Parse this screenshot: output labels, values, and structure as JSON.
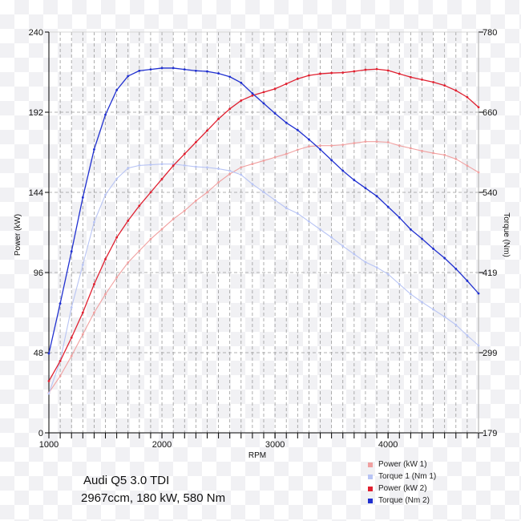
{
  "chart_data": {
    "type": "line",
    "title": "Audi Q5 3.0 TDI",
    "subtitle": "2967ccm, 180 kW, 580 Nm",
    "xlabel": "RPM",
    "ylabel": "Power (kW)",
    "y2label": "Torque (Nm)",
    "xlim": [
      1000,
      4800
    ],
    "ylim": [
      0,
      240
    ],
    "y2lim": [
      179,
      780
    ],
    "x_ticks": [
      "1000",
      "2000",
      "3000",
      "4000"
    ],
    "y_ticks": [
      "0",
      "48",
      "96",
      "144",
      "192",
      "240"
    ],
    "y2_ticks": [
      "179",
      "299",
      "419",
      "540",
      "660",
      "780"
    ],
    "grid": true,
    "legend_position": "bottom-right",
    "x": [
      1000,
      1100,
      1200,
      1300,
      1400,
      1500,
      1600,
      1700,
      1800,
      1900,
      2000,
      2100,
      2200,
      2300,
      2400,
      2500,
      2600,
      2700,
      2800,
      2900,
      3000,
      3100,
      3200,
      3300,
      3400,
      3500,
      3600,
      3700,
      3800,
      3900,
      4000,
      4100,
      4200,
      4300,
      4400,
      4500,
      4600,
      4700,
      4800
    ],
    "series": [
      {
        "name": "Power (kW 1)",
        "axis": "left",
        "color": "#f0a0a0",
        "values": [
          24,
          34,
          46,
          59,
          72,
          83,
          93,
          102,
          109,
          116,
          122,
          128,
          133,
          139,
          144,
          150,
          155,
          159,
          161,
          163,
          165,
          167,
          169.5,
          171.5,
          172,
          172,
          172.5,
          173.5,
          174.4,
          174.4,
          174,
          172,
          170.4,
          168.8,
          167.5,
          166.4,
          164,
          160,
          156
        ]
      },
      {
        "name": "Torque 1 (Nm 1)",
        "axis": "right",
        "color": "#b8c4f4",
        "values": [
          238,
          287,
          367,
          431,
          495,
          536,
          560,
          576,
          580,
          581,
          582,
          582,
          580,
          578,
          577,
          575,
          572,
          566,
          552,
          540,
          528,
          516,
          508,
          496,
          484,
          472,
          459,
          447,
          435,
          427,
          417,
          402,
          387,
          375,
          364,
          353,
          341,
          325,
          310
        ]
      },
      {
        "name": "Power (kW 2)",
        "axis": "left",
        "color": "#e02030",
        "values": [
          31,
          43,
          57,
          72,
          89,
          104,
          117,
          127,
          136,
          144,
          152,
          160,
          167,
          174,
          181,
          188,
          194,
          199,
          202,
          204,
          206,
          209,
          212,
          214,
          215,
          215.5,
          215.7,
          216.5,
          217.4,
          217.8,
          217,
          215,
          213,
          211.5,
          210,
          208,
          205,
          201,
          195
        ]
      },
      {
        "name": "Torque (Nm 2)",
        "axis": "right",
        "color": "#2030d0",
        "values": [
          298,
          373,
          451,
          532,
          604,
          656,
          693,
          714,
          722,
          724,
          726,
          726,
          724,
          722,
          721,
          718,
          713,
          704,
          688,
          673,
          658,
          644,
          633,
          619,
          604,
          588,
          572,
          558,
          546,
          534,
          518,
          502,
          484,
          470,
          455,
          441,
          425,
          407,
          388
        ]
      }
    ]
  }
}
